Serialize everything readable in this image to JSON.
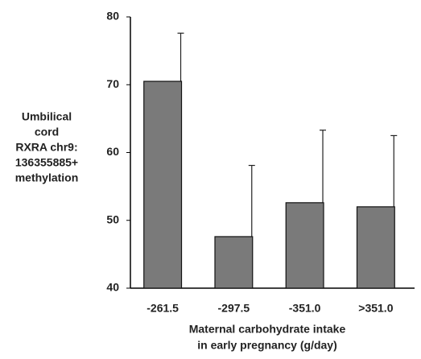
{
  "chart_data": {
    "type": "bar",
    "ylabel": [
      "Umbilical",
      "cord",
      "RXRA chr9:",
      "136355885+",
      "methylation"
    ],
    "xlabel": [
      "Maternal carbohydrate intake",
      "in early pregnancy (g/day)"
    ],
    "categories": [
      "-261.5",
      "-297.5",
      "-351.0",
      ">351.0"
    ],
    "values": [
      70.5,
      47.6,
      52.6,
      52.0
    ],
    "errors": [
      7.1,
      10.5,
      10.7,
      10.5
    ],
    "color": "#7a7a7a",
    "ylim": [
      40,
      80
    ],
    "yticks": [
      40,
      50,
      60,
      70,
      80
    ],
    "grid": false
  }
}
